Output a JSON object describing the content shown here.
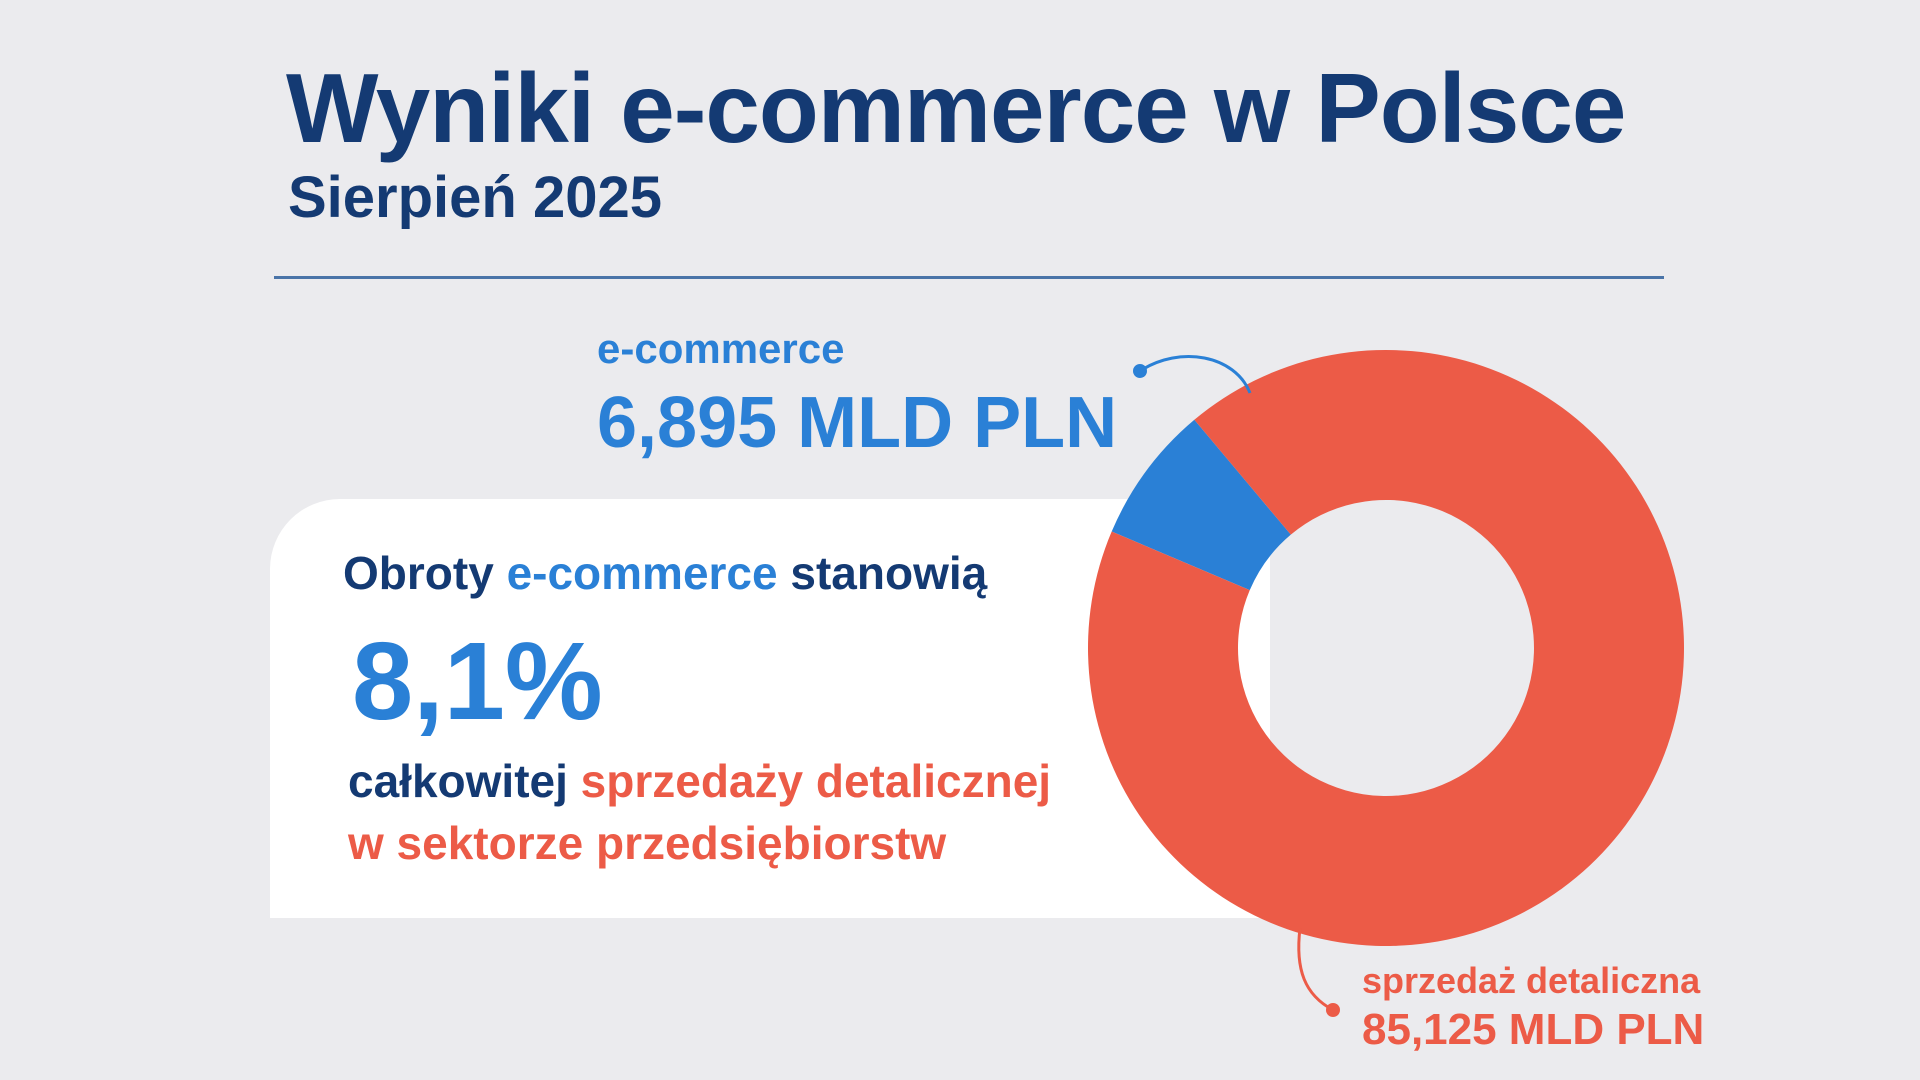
{
  "title": "Wyniki e-commerce w Polsce",
  "subtitle": "Sierpień 2025",
  "card": {
    "lead_a": "Obroty ",
    "lead_b": "e-commerce",
    "lead_c": " stanowią",
    "big": "8,1%",
    "tail_a": "całkowitej ",
    "tail_b": "sprzedaży detalicznej",
    "tail_c": "w sektorze przedsiębiorstw"
  },
  "colors": {
    "navy": "#143a73",
    "ecommerce": "#2a80d6",
    "retail": "#ec5b47",
    "background": "#ebebee"
  },
  "chart_data": {
    "type": "pie",
    "donut": true,
    "categories": [
      "e-commerce",
      "sprzedaż detaliczna"
    ],
    "values": [
      6.895,
      85.125
    ],
    "value_labels": [
      "6,895 MLD PLN",
      "85,125 MLD PLN"
    ],
    "unit": "MLD PLN",
    "share_ecommerce_percent": 8.1
  }
}
